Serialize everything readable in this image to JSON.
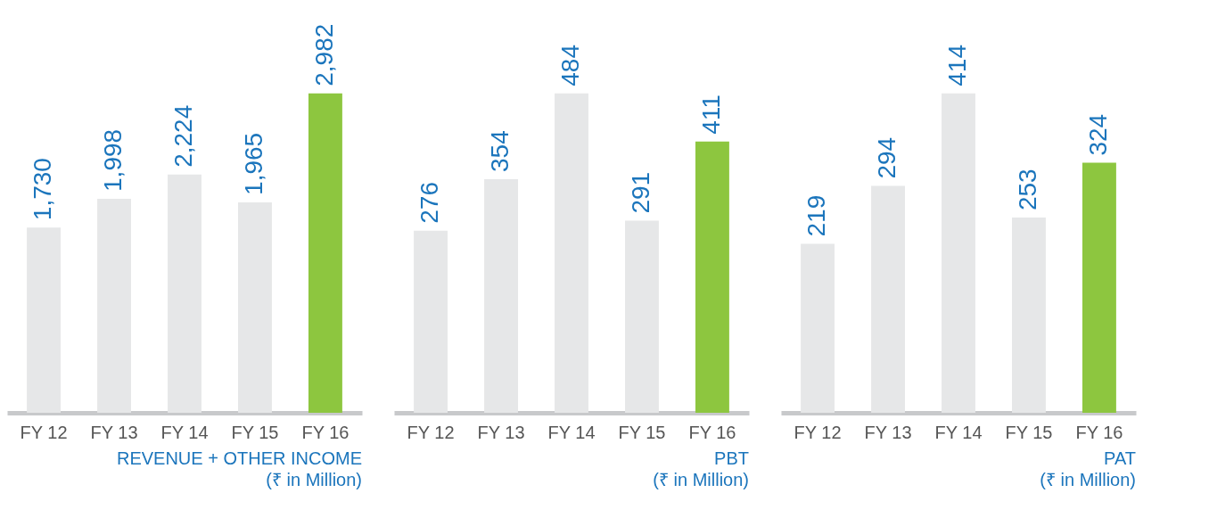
{
  "chart_data": [
    {
      "type": "bar",
      "title": "REVENUE + OTHER INCOME",
      "subtitle": "(₹ in Million)",
      "categories": [
        "FY 12",
        "FY 13",
        "FY 14",
        "FY 15",
        "FY 16"
      ],
      "values": [
        1730,
        1998,
        2224,
        1965,
        2982
      ],
      "colors": [
        "#e6e7e8",
        "#e6e7e8",
        "#e6e7e8",
        "#e6e7e8",
        "#8dc63f"
      ],
      "value_labels": [
        "1,730",
        "1,998",
        "2,224",
        "1,965",
        "2,982"
      ]
    },
    {
      "type": "bar",
      "title": "PBT",
      "subtitle": "(₹ in Million)",
      "categories": [
        "FY 12",
        "FY 13",
        "FY 14",
        "FY 15",
        "FY 16"
      ],
      "values": [
        276,
        354,
        484,
        291,
        411
      ],
      "colors": [
        "#e6e7e8",
        "#e6e7e8",
        "#e6e7e8",
        "#e6e7e8",
        "#8dc63f"
      ],
      "data_labels": true
    },
    {
      "type": "bar",
      "title": "PAT",
      "subtitle": "(₹ in Million)",
      "categories": [
        "FY 12",
        "FY 13",
        "FY 14",
        "FY 15",
        "FY 16"
      ],
      "values": [
        219,
        294,
        414,
        253,
        324
      ],
      "colors": [
        "#e6e7e8",
        "#e6e7e8",
        "#e6e7e8",
        "#e6e7e8",
        "#8dc63f"
      ],
      "data_labels": true
    }
  ]
}
